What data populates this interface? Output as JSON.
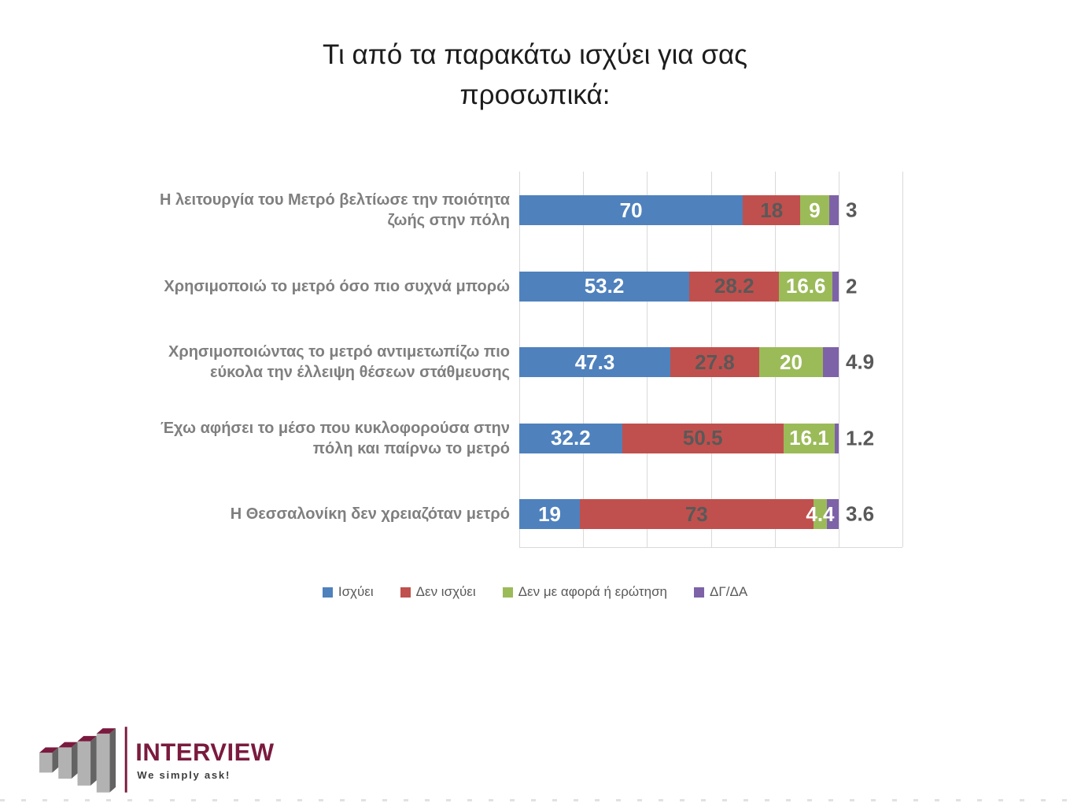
{
  "title": "Τι από τα παρακάτω ισχύει για σας προσωπικά:",
  "chart_data": {
    "type": "bar",
    "orientation": "horizontal",
    "stacked": true,
    "grid": true,
    "axis": {
      "min": 0,
      "max": 120,
      "gridline_step": 20,
      "gridline_color": "#d9d9d9"
    },
    "categories": [
      "Η λειτουργία του Μετρό βελτίωσε την ποιότητα ζωής στην πόλη",
      "Χρησιμοποιώ το μετρό όσο πιο συχνά μπορώ",
      "Χρησιμοποιώντας το μετρό αντιμετωπίζω πιο εύκολα την έλλειψη θέσεων στάθμευσης",
      "Έχω αφήσει το μέσο που κυκλοφορούσα στην πόλη και παίρνω το μετρό",
      "Η Θεσσαλονίκη δεν χρειαζόταν μετρό"
    ],
    "series": [
      {
        "name": "Ισχύει",
        "color": "#4f81bd",
        "label_color": "#ffffff",
        "labels_outside": false,
        "values": [
          70,
          53.2,
          47.3,
          32.2,
          19
        ]
      },
      {
        "name": "Δεν ισχύει",
        "color": "#c0504d",
        "label_color": "#595959",
        "labels_outside": false,
        "values": [
          18,
          28.2,
          27.8,
          50.5,
          73
        ]
      },
      {
        "name": "Δεν με αφορά ή ερώτηση",
        "color": "#9bbb59",
        "label_color": "#ffffff",
        "labels_outside": false,
        "values": [
          9,
          16.6,
          20,
          16.1,
          4.4
        ]
      },
      {
        "name": "ΔΓ/ΔΑ",
        "color": "#7e62a8",
        "label_color": "#595959",
        "labels_outside": true,
        "values": [
          3,
          2,
          4.9,
          1.2,
          3.6
        ]
      }
    ],
    "legend_position": "bottom"
  },
  "logo": {
    "brand": "INTERVIEW",
    "tagline": "We simply ask!",
    "brand_color": "#7a1a3e",
    "tagline_color": "#3d3d3d",
    "bar_front_color": "#b2b2b2",
    "bar_side_color": "#636363"
  }
}
